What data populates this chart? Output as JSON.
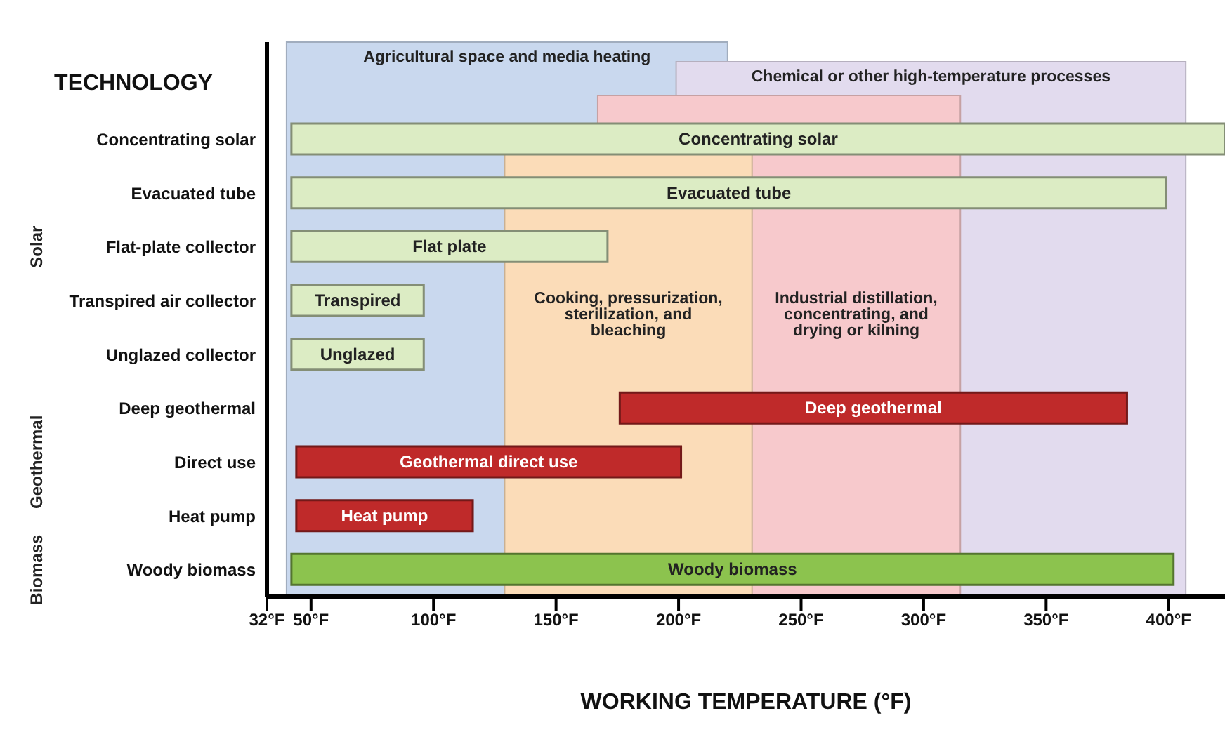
{
  "chart_data": {
    "type": "bar",
    "orientation": "horizontal",
    "xlabel": "WORKING TEMPERATURE (°F)",
    "ylabel": "TECHNOLOGY",
    "categories": [
      "Concentrating solar",
      "Evacuated tube",
      "Flat-plate collector",
      "Transpired air collector",
      "Unglazed collector",
      "Deep geothermal",
      "Direct use",
      "Heat pump",
      "Woody biomass"
    ],
    "base": [
      42,
      42,
      42,
      42,
      42,
      176,
      44,
      44,
      42
    ],
    "values": [
      381,
      357,
      129,
      54,
      54,
      207,
      157,
      72,
      360
    ],
    "value_labels": [
      "Concentrating solar",
      "Evacuated tube",
      "Flat plate",
      "Transpired",
      "Unglazed",
      "Deep geothermal",
      "Geothermal direct use",
      "Heat pump",
      "Woody biomass"
    ],
    "colors": [
      "#dcecc4",
      "#dcecc4",
      "#dcecc4",
      "#dcecc4",
      "#dcecc4",
      "#bf2a2a",
      "#bf2a2a",
      "#bf2a2a",
      "#8cc34e"
    ],
    "xlim": [
      32,
      423
    ],
    "xticks": [
      {
        "value": 32,
        "label": "32°F"
      },
      {
        "value": 50,
        "label": "50°F"
      },
      {
        "value": 100,
        "label": "100°F"
      },
      {
        "value": 150,
        "label": "150°F"
      },
      {
        "value": 200,
        "label": "200°F"
      },
      {
        "value": 250,
        "label": "250°F"
      },
      {
        "value": 300,
        "label": "300°F"
      },
      {
        "value": 350,
        "label": "350°F"
      },
      {
        "value": 400,
        "label": "400°F"
      }
    ],
    "bands": [
      {
        "axis": "x",
        "from": 40,
        "to": 220,
        "label": "Agricultural space and media heating",
        "color": "#c9d8ee"
      },
      {
        "axis": "x",
        "from": 199,
        "to": 407,
        "label": "Chemical or other high-temperature processes",
        "color": "#e2dbee"
      },
      {
        "axis": "x",
        "from": 167,
        "to": 315,
        "label": "Industrial distillation, concentrating, and drying or kilning",
        "color": "#f7c9cc"
      },
      {
        "axis": "x",
        "from": 129,
        "to": 230,
        "label": "Cooking, pressurization, sterilization, and bleaching",
        "color": "#fbdcb8"
      }
    ],
    "annotations": [
      "Solar",
      "Geothermal",
      "Biomass"
    ]
  }
}
